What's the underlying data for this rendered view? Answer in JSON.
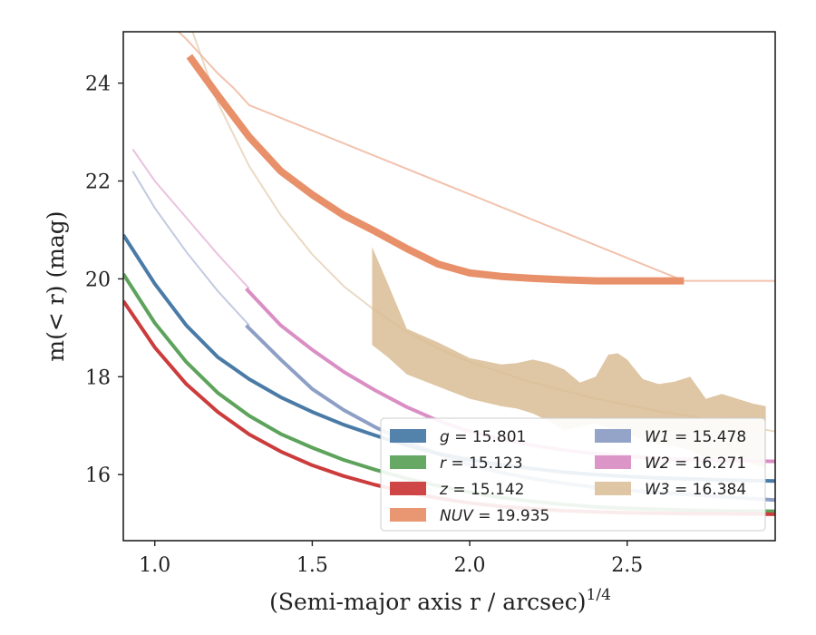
{
  "chart_data": {
    "type": "line",
    "title": "",
    "xlabel": "(Semi-major axis r / arcsec)",
    "xlabel_exponent": "1/4",
    "ylabel": "m(< r) (mag)",
    "xlim": [
      0.9,
      2.97
    ],
    "ylim": [
      25.05,
      14.65
    ],
    "y_inverted": true,
    "grid": false,
    "legend_position": "lower-right",
    "xticks": [
      1.0,
      1.5,
      2.0,
      2.5
    ],
    "xtick_labels": [
      "1.0",
      "1.5",
      "2.0",
      "2.5"
    ],
    "yticks": [
      16,
      18,
      20,
      22,
      24
    ],
    "ytick_labels": [
      "16",
      "18",
      "20",
      "22",
      "24"
    ],
    "series": [
      {
        "name": "g = 15.801",
        "label_var": "g",
        "label_val": "15.801",
        "color": "#4a7ba7",
        "band": false,
        "x": [
          0.9,
          1.0,
          1.1,
          1.2,
          1.3,
          1.4,
          1.5,
          1.6,
          1.7,
          1.8,
          1.9,
          2.0,
          2.1,
          2.2,
          2.3,
          2.4,
          2.5,
          2.6,
          2.7,
          2.8,
          2.97
        ],
        "y": [
          20.9,
          19.9,
          19.05,
          18.4,
          17.95,
          17.58,
          17.28,
          17.02,
          16.8,
          16.6,
          16.43,
          16.3,
          16.2,
          16.12,
          16.05,
          16.0,
          15.96,
          15.93,
          15.91,
          15.89,
          15.87
        ]
      },
      {
        "name": "r = 15.123",
        "label_var": "r",
        "label_val": "15.123",
        "color": "#5ea35c",
        "band": false,
        "x": [
          0.9,
          1.0,
          1.1,
          1.2,
          1.3,
          1.4,
          1.5,
          1.6,
          1.7,
          1.8,
          1.9,
          2.0,
          2.1,
          2.2,
          2.3,
          2.4,
          2.5,
          2.6,
          2.7,
          2.8,
          2.97
        ],
        "y": [
          20.1,
          19.1,
          18.3,
          17.67,
          17.2,
          16.83,
          16.55,
          16.3,
          16.1,
          15.92,
          15.77,
          15.64,
          15.53,
          15.45,
          15.39,
          15.34,
          15.31,
          15.29,
          15.27,
          15.26,
          15.25
        ]
      },
      {
        "name": "z = 15.142",
        "label_var": "z",
        "label_val": "15.142",
        "color": "#cc3c3c",
        "band": false,
        "x": [
          0.9,
          1.0,
          1.1,
          1.2,
          1.3,
          1.4,
          1.5,
          1.6,
          1.7,
          1.8,
          1.9,
          2.0,
          2.1,
          2.2,
          2.3,
          2.4,
          2.5,
          2.6,
          2.7,
          2.8,
          2.97
        ],
        "y": [
          19.55,
          18.6,
          17.85,
          17.28,
          16.82,
          16.47,
          16.19,
          15.97,
          15.79,
          15.64,
          15.52,
          15.42,
          15.35,
          15.3,
          15.26,
          15.24,
          15.22,
          15.21,
          15.2,
          15.2,
          15.19
        ]
      },
      {
        "name": "NUV = 19.935",
        "label_var": "NUV",
        "label_val": "19.935",
        "color": "#e8906a",
        "band": false,
        "x": [
          1.11,
          1.2,
          1.3,
          1.4,
          1.5,
          1.6,
          1.7,
          1.8,
          1.9,
          2.0,
          2.1,
          2.2,
          2.3,
          2.4,
          2.5,
          2.6,
          2.68
        ],
        "y": [
          24.55,
          23.75,
          22.9,
          22.2,
          21.72,
          21.3,
          20.97,
          20.62,
          20.3,
          20.12,
          20.05,
          20.01,
          19.98,
          19.96,
          19.96,
          19.96,
          19.96
        ]
      },
      {
        "name": "W1 = 15.478",
        "label_var": "W1",
        "label_val": "15.478",
        "color": "#8e9fc6",
        "band": false,
        "x": [
          1.29,
          1.4,
          1.5,
          1.6,
          1.7,
          1.8,
          1.9,
          2.0,
          2.1,
          2.2,
          2.3,
          2.4,
          2.5,
          2.6,
          2.7,
          2.8,
          2.97
        ],
        "y": [
          19.05,
          18.35,
          17.75,
          17.32,
          16.97,
          16.67,
          16.42,
          16.2,
          16.04,
          15.92,
          15.82,
          15.74,
          15.68,
          15.63,
          15.59,
          15.55,
          15.48
        ]
      },
      {
        "name": "W2 = 16.271",
        "label_var": "W2",
        "label_val": "16.271",
        "color": "#da8fc4",
        "band": false,
        "x": [
          1.29,
          1.4,
          1.5,
          1.6,
          1.7,
          1.8,
          1.9,
          2.0,
          2.1,
          2.2,
          2.3,
          2.4,
          2.5,
          2.6,
          2.7,
          2.8,
          2.97
        ],
        "y": [
          19.8,
          19.05,
          18.55,
          18.1,
          17.72,
          17.38,
          17.1,
          16.88,
          16.73,
          16.6,
          16.5,
          16.43,
          16.38,
          16.33,
          16.31,
          16.29,
          16.27
        ]
      },
      {
        "name": "W3 = 16.384",
        "label_var": "W3",
        "label_val": "16.384",
        "color": "#d9bc94",
        "band": true,
        "x": [
          1.69,
          1.74,
          1.8,
          1.9,
          2.0,
          2.1,
          2.15,
          2.2,
          2.25,
          2.3,
          2.35,
          2.4,
          2.44,
          2.47,
          2.5,
          2.55,
          2.6,
          2.65,
          2.7,
          2.75,
          2.8,
          2.85,
          2.9,
          2.94
        ],
        "y_upper": [
          18.65,
          18.4,
          18.05,
          17.8,
          17.55,
          17.4,
          17.35,
          17.25,
          17.1,
          16.9,
          16.98,
          17.05,
          16.95,
          16.9,
          16.85,
          16.7,
          16.62,
          16.58,
          16.5,
          16.3,
          16.35,
          16.4,
          16.2,
          16.15
        ],
        "y_lower": [
          20.65,
          19.9,
          18.98,
          18.7,
          18.38,
          18.25,
          18.28,
          18.35,
          18.28,
          18.15,
          17.88,
          18.0,
          18.45,
          18.48,
          18.35,
          17.95,
          17.85,
          17.9,
          18.0,
          17.55,
          17.65,
          17.55,
          17.45,
          17.4
        ]
      }
    ],
    "extrapolations": [
      {
        "series": "g",
        "x": [
          2.4,
          2.97
        ],
        "y": [
          16.0,
          15.87
        ]
      },
      {
        "series": "r",
        "x": [
          2.4,
          2.97
        ],
        "y": [
          15.34,
          15.25
        ]
      },
      {
        "series": "z",
        "x": [
          2.4,
          2.97
        ],
        "y": [
          15.24,
          15.19
        ]
      },
      {
        "series": "NUV",
        "x": [
          1.0,
          1.05,
          1.1,
          1.15,
          1.2,
          1.25,
          1.3,
          2.68,
          2.97
        ],
        "y": [
          25.55,
          25.2,
          24.9,
          24.55,
          24.2,
          23.9,
          23.55,
          19.96,
          19.96
        ]
      },
      {
        "series": "W1",
        "x": [
          0.93,
          1.0,
          1.1,
          1.2,
          1.3
        ],
        "y": [
          22.2,
          21.45,
          20.55,
          19.75,
          19.05
        ]
      },
      {
        "series": "W2",
        "x": [
          0.93,
          1.0,
          1.1,
          1.2,
          1.3
        ],
        "y": [
          22.65,
          22.0,
          21.25,
          20.5,
          19.8
        ]
      },
      {
        "series": "W3",
        "x": [
          1.12,
          1.2,
          1.3,
          1.4,
          1.5,
          1.6,
          1.7,
          1.8,
          1.9,
          2.0,
          2.2,
          2.4,
          2.6,
          2.8,
          2.97
        ],
        "y": [
          25.05,
          23.6,
          22.3,
          21.3,
          20.5,
          19.85,
          19.35,
          18.92,
          18.58,
          18.3,
          17.88,
          17.55,
          17.3,
          17.08,
          16.88
        ]
      }
    ]
  }
}
